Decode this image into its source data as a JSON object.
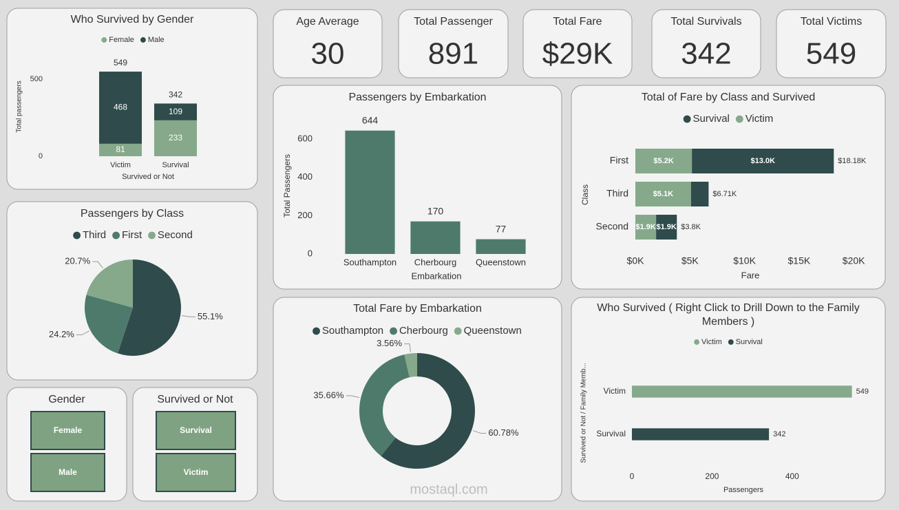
{
  "cards": [
    {
      "title": "Age Average",
      "value": "30"
    },
    {
      "title": "Total Passenger",
      "value": "891"
    },
    {
      "title": "Total Fare",
      "value": "$29K"
    },
    {
      "title": "Total Survivals",
      "value": "342"
    },
    {
      "title": "Total Victims",
      "value": "549"
    }
  ],
  "slicers": [
    {
      "title": "Gender",
      "items": [
        "Female",
        "Male"
      ]
    },
    {
      "title": "Survived or Not",
      "items": [
        "Survival",
        "Victim"
      ]
    }
  ],
  "watermark": "mostaql.com",
  "chart_data": [
    {
      "type": "bar",
      "title": "Who Survived by Gender",
      "categories": [
        "Victim",
        "Survival"
      ],
      "series": [
        {
          "name": "Female",
          "color": "#86a98b",
          "values": [
            81,
            233
          ]
        },
        {
          "name": "Male",
          "color": "#2f4b4b",
          "values": [
            468,
            109
          ]
        }
      ],
      "totals": [
        549,
        342
      ],
      "stacked": true,
      "xlabel": "Survived or Not",
      "ylabel": "Total passengers",
      "ylim": [
        0,
        560
      ],
      "yticks": [
        0,
        500
      ],
      "grid": false
    },
    {
      "type": "pie",
      "title": "Passengers by Class",
      "categories": [
        "Third",
        "First",
        "Second"
      ],
      "values": [
        55.1,
        24.2,
        20.7
      ],
      "value_labels": [
        "55.1%",
        "24.2%",
        "20.7%"
      ],
      "colors": [
        "#2f4b4b",
        "#4e7a6c",
        "#86a98b"
      ]
    },
    {
      "type": "bar",
      "title": "Passengers by Embarkation",
      "categories": [
        "Southampton",
        "Cherbourg",
        "Queenstown"
      ],
      "values": [
        644,
        170,
        77
      ],
      "color": "#4e7a6c",
      "xlabel": "Embarkation",
      "ylabel": "Total Passengers",
      "ylim": [
        0,
        680
      ],
      "yticks": [
        0,
        200,
        400,
        600
      ],
      "grid": false
    },
    {
      "type": "bar",
      "orientation": "horizontal",
      "stacked": true,
      "title": "Total of Fare by Class and Survived",
      "categories": [
        "First",
        "Third",
        "Second"
      ],
      "series": [
        {
          "name": "Survival",
          "color": "#2f4b4b",
          "values": [
            13000,
            1610,
            1900
          ],
          "value_labels": [
            "$13.0K",
            null,
            "$1.9K"
          ]
        },
        {
          "name": "Victim",
          "color": "#86a98b",
          "values": [
            5180,
            5100,
            1900
          ],
          "value_labels": [
            "$5.2K",
            "$5.1K",
            "$1.9K"
          ]
        }
      ],
      "totals": [
        18180,
        6710,
        3800
      ],
      "total_labels": [
        "$18.18K",
        "$6.71K",
        "$3.8K"
      ],
      "xlabel": "Fare",
      "ylabel": "Class",
      "xlim": [
        0,
        21000
      ],
      "xticks": [
        {
          "value": 0,
          "label": "$0K"
        },
        {
          "value": 5000,
          "label": "$5K"
        },
        {
          "value": 10000,
          "label": "$10K"
        },
        {
          "value": 15000,
          "label": "$15K"
        },
        {
          "value": 20000,
          "label": "$20K"
        }
      ],
      "grid": false
    },
    {
      "type": "pie",
      "donut": true,
      "title": "Total Fare by Embarkation",
      "categories": [
        "Southampton",
        "Cherbourg",
        "Queenstown"
      ],
      "values": [
        60.78,
        35.66,
        3.56
      ],
      "value_labels": [
        "60.78%",
        "35.66%",
        "3.56%"
      ],
      "colors": [
        "#2f4b4b",
        "#4e7a6c",
        "#86a98b"
      ]
    },
    {
      "type": "bar",
      "orientation": "horizontal",
      "title": "Who Survived ( Right Click to Drill Down to the Family Members )",
      "categories": [
        "Victim",
        "Survival"
      ],
      "values": [
        549,
        342
      ],
      "colors": [
        "#86a98b",
        "#2f4b4b"
      ],
      "xlabel": "Passengers",
      "ylabel": "Survived or Not / Family Memb...",
      "xlim": [
        0,
        560
      ],
      "xticks": [
        0,
        200,
        400
      ],
      "grid": false
    }
  ]
}
